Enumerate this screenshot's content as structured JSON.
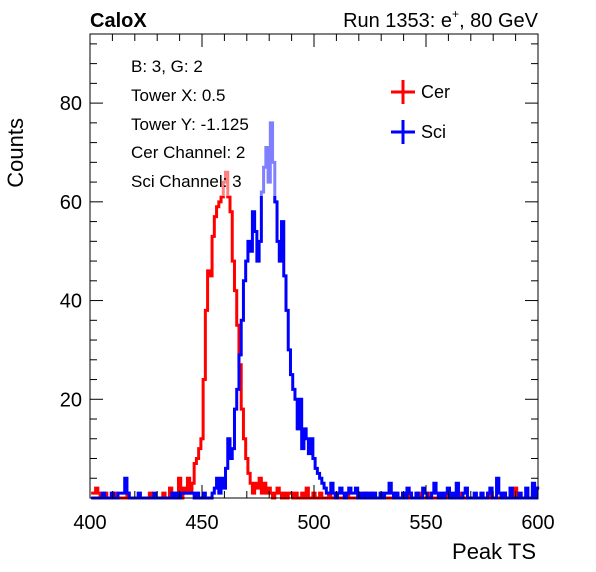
{
  "chart_data": {
    "type": "histogram-step",
    "header_left": "CaloX",
    "header_right_prefix": "Run 1353: e",
    "header_right_sup": "+",
    "header_right_suffix": ", 80 GeV",
    "xlabel": "Peak TS",
    "ylabel": "Counts",
    "xlim": [
      400,
      600
    ],
    "ylim": [
      0,
      94
    ],
    "x_ticks": [
      400,
      450,
      500,
      550,
      600
    ],
    "y_ticks": [
      20,
      40,
      60,
      80
    ],
    "info_lines": [
      "B: 3, G: 2",
      "Tower X: 0.5",
      "Tower Y: -1.125",
      "Cer Channel: 2",
      "Sci Channel: 3"
    ],
    "legend_placement": "top-right",
    "grid": false,
    "bin_width": 1,
    "series": [
      {
        "name": "Cer",
        "color": "#ff0000",
        "x": [
          401,
          402,
          403,
          404,
          405,
          406,
          407,
          408,
          409,
          410,
          411,
          412,
          413,
          414,
          415,
          416,
          417,
          418,
          419,
          420,
          421,
          422,
          423,
          424,
          425,
          426,
          427,
          428,
          429,
          430,
          431,
          432,
          433,
          434,
          435,
          436,
          437,
          438,
          439,
          440,
          441,
          442,
          443,
          444,
          445,
          446,
          447,
          448,
          449,
          450,
          451,
          452,
          453,
          454,
          455,
          456,
          457,
          458,
          459,
          460,
          461,
          462,
          463,
          464,
          465,
          466,
          467,
          468,
          469,
          470,
          471,
          472,
          473,
          474,
          475,
          476,
          477,
          478,
          479,
          480,
          481,
          482,
          483,
          484,
          485,
          486,
          487,
          488,
          489,
          490,
          491,
          492,
          493,
          494,
          495,
          496,
          497,
          498,
          499,
          500,
          501,
          502,
          503,
          504,
          505,
          506,
          507,
          508,
          509,
          510,
          511,
          512,
          513,
          514,
          515,
          516,
          517,
          518,
          519,
          520,
          521,
          522,
          523,
          524,
          525,
          526,
          527,
          528,
          529,
          530,
          531,
          532,
          533,
          534,
          535,
          536,
          537,
          538,
          539,
          540,
          541,
          542,
          543,
          544,
          545,
          546,
          547,
          548,
          549,
          550,
          551,
          552,
          553,
          554,
          555,
          556,
          557,
          558,
          559,
          560,
          561,
          562,
          563,
          564,
          565,
          566,
          567,
          568,
          569,
          570,
          571,
          572,
          573,
          574,
          575,
          576,
          577,
          578,
          579,
          580,
          581,
          582,
          583,
          584,
          585,
          586,
          587,
          588,
          589,
          590,
          591,
          592,
          593,
          594,
          595,
          596,
          597,
          598,
          599,
          600
        ],
        "y": [
          1,
          1,
          2,
          1,
          0,
          0,
          1,
          0,
          0,
          0,
          1,
          0,
          0,
          0,
          0,
          0,
          1,
          0,
          0,
          0,
          0,
          0,
          0,
          0,
          0,
          0,
          1,
          0,
          0,
          0,
          0,
          0,
          1,
          0,
          0,
          2,
          0,
          1,
          0,
          4,
          0,
          2,
          1,
          4,
          1,
          3,
          7,
          8,
          10,
          12,
          24,
          38,
          46,
          45,
          53,
          57,
          59,
          60,
          61,
          64,
          66,
          61,
          58,
          48,
          42,
          35,
          27,
          18,
          12,
          8,
          5,
          3,
          1,
          3,
          2,
          4,
          1,
          3,
          1,
          2,
          1,
          0,
          1,
          2,
          1,
          0,
          1,
          0,
          1,
          1,
          0,
          1,
          0,
          0,
          1,
          0,
          2,
          0,
          0,
          1,
          0,
          0,
          1,
          0,
          0,
          0,
          1,
          0,
          0,
          1,
          0,
          0,
          0,
          0,
          1,
          0,
          0,
          0,
          0,
          0,
          0,
          0,
          1,
          0,
          0,
          1,
          0,
          0,
          0,
          0,
          0,
          0,
          0,
          0,
          0,
          1,
          0,
          0,
          0,
          0,
          0,
          0,
          1,
          0,
          0,
          0,
          1,
          0,
          0,
          0,
          0,
          1,
          0,
          0,
          0,
          0,
          0,
          0,
          1,
          0,
          0,
          0,
          0,
          0,
          1,
          0,
          0,
          0,
          0,
          0,
          0,
          0,
          0,
          0,
          0,
          0,
          0,
          1,
          0,
          0,
          0,
          0,
          0,
          0,
          1,
          0,
          0,
          0,
          0,
          2,
          0,
          0,
          0,
          0,
          0,
          0,
          0,
          1,
          0,
          2
        ]
      },
      {
        "name": "Sci",
        "color": "#0000ff",
        "x": [
          401,
          402,
          403,
          404,
          405,
          406,
          407,
          408,
          409,
          410,
          411,
          412,
          413,
          414,
          415,
          416,
          417,
          418,
          419,
          420,
          421,
          422,
          423,
          424,
          425,
          426,
          427,
          428,
          429,
          430,
          431,
          432,
          433,
          434,
          435,
          436,
          437,
          438,
          439,
          440,
          441,
          442,
          443,
          444,
          445,
          446,
          447,
          448,
          449,
          450,
          451,
          452,
          453,
          454,
          455,
          456,
          457,
          458,
          459,
          460,
          461,
          462,
          463,
          464,
          465,
          466,
          467,
          468,
          469,
          470,
          471,
          472,
          473,
          474,
          475,
          476,
          477,
          478,
          479,
          480,
          481,
          482,
          483,
          484,
          485,
          486,
          487,
          488,
          489,
          490,
          491,
          492,
          493,
          494,
          495,
          496,
          497,
          498,
          499,
          500,
          501,
          502,
          503,
          504,
          505,
          506,
          507,
          508,
          509,
          510,
          511,
          512,
          513,
          514,
          515,
          516,
          517,
          518,
          519,
          520,
          521,
          522,
          523,
          524,
          525,
          526,
          527,
          528,
          529,
          530,
          531,
          532,
          533,
          534,
          535,
          536,
          537,
          538,
          539,
          540,
          541,
          542,
          543,
          544,
          545,
          546,
          547,
          548,
          549,
          550,
          551,
          552,
          553,
          554,
          555,
          556,
          557,
          558,
          559,
          560,
          561,
          562,
          563,
          564,
          565,
          566,
          567,
          568,
          569,
          570,
          571,
          572,
          573,
          574,
          575,
          576,
          577,
          578,
          579,
          580,
          581,
          582,
          583,
          584,
          585,
          586,
          587,
          588,
          589,
          590,
          591,
          592,
          593,
          594,
          595,
          596,
          597,
          598,
          599,
          600
        ],
        "y": [
          0,
          0,
          0,
          0,
          0,
          1,
          0,
          0,
          0,
          1,
          0,
          0,
          1,
          1,
          1,
          4,
          1,
          0,
          0,
          0,
          0,
          1,
          0,
          0,
          0,
          0,
          0,
          0,
          1,
          0,
          0,
          0,
          0,
          0,
          0,
          0,
          1,
          0,
          1,
          0,
          1,
          1,
          1,
          1,
          1,
          1,
          0,
          1,
          0,
          0,
          1,
          0,
          0,
          0,
          1,
          2,
          4,
          1,
          4,
          2,
          6,
          12,
          8,
          10,
          18,
          22,
          29,
          36,
          44,
          48,
          52,
          50,
          58,
          54,
          48,
          52,
          62,
          67,
          71,
          64,
          76,
          68,
          60,
          52,
          48,
          56,
          45,
          38,
          30,
          25,
          22,
          20,
          14,
          20,
          10,
          14,
          12,
          9,
          12,
          8,
          6,
          5,
          4,
          3,
          2,
          1,
          1,
          3,
          1,
          0,
          1,
          2,
          1,
          0,
          1,
          2,
          1,
          1,
          2,
          0,
          1,
          0,
          1,
          0,
          1,
          0,
          1,
          0,
          0,
          1,
          0,
          1,
          1,
          3,
          1,
          0,
          1,
          0,
          0,
          1,
          0,
          2,
          1,
          0,
          0,
          1,
          0,
          0,
          2,
          1,
          0,
          0,
          1,
          3,
          1,
          0,
          1,
          0,
          1,
          2,
          0,
          1,
          0,
          3,
          0,
          0,
          1,
          2,
          0,
          0,
          0,
          1,
          0,
          0,
          1,
          0,
          0,
          1,
          2,
          0,
          0,
          4,
          1,
          0,
          1,
          0,
          0,
          2,
          0,
          0,
          0,
          1,
          0,
          0,
          2,
          0,
          0,
          3,
          0,
          2
        ]
      }
    ]
  }
}
